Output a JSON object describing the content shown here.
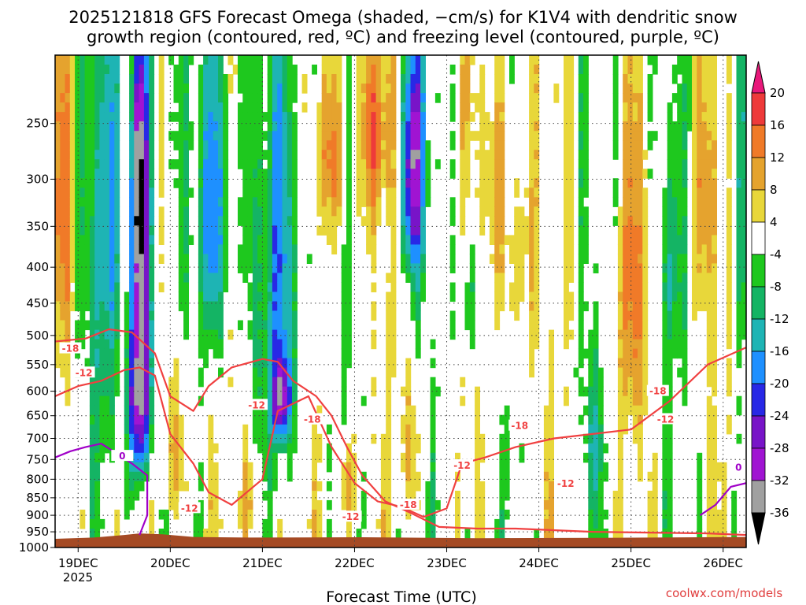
{
  "chart_data": {
    "type": "heatmap",
    "title_lines": [
      "2025121818 GFS Forecast Omega (shaded, −cm/s) for K1V4 with dendritic snow",
      "growth region (contoured, red, ºC) and freezing level (contoured, purple, ºC)"
    ],
    "xlabel": "Forecast Time (UTC)",
    "ylabel": "",
    "credit": "coolwx.com/models",
    "x_ticks": [
      "19DEC",
      "20DEC",
      "21DEC",
      "22DEC",
      "23DEC",
      "24DEC",
      "25DEC",
      "26DEC"
    ],
    "x_year": "2025",
    "x_range_hours": [
      0,
      180
    ],
    "y_ticks": [
      250,
      300,
      350,
      400,
      450,
      500,
      550,
      600,
      650,
      700,
      750,
      800,
      850,
      900,
      950,
      1000
    ],
    "y_range_hpa": [
      200,
      1000
    ],
    "colorbar": {
      "ticks": [
        20,
        16,
        12,
        8,
        4,
        -4,
        -8,
        -12,
        -16,
        -20,
        -24,
        -28,
        -32,
        -36
      ],
      "levels": [
        {
          "lo": 20,
          "hi": 24,
          "color": "#e8187a"
        },
        {
          "lo": 16,
          "hi": 20,
          "color": "#ee3a3a"
        },
        {
          "lo": 12,
          "hi": 16,
          "color": "#f07a28"
        },
        {
          "lo": 8,
          "hi": 12,
          "color": "#e5a32e"
        },
        {
          "lo": 4,
          "hi": 8,
          "color": "#e8d73a"
        },
        {
          "lo": -4,
          "hi": 4,
          "color": "#ffffff"
        },
        {
          "lo": -8,
          "hi": -4,
          "color": "#1ec81e"
        },
        {
          "lo": -12,
          "hi": -8,
          "color": "#14b464"
        },
        {
          "lo": -16,
          "hi": -12,
          "color": "#1eb4b4"
        },
        {
          "lo": -20,
          "hi": -16,
          "color": "#1e90ff"
        },
        {
          "lo": -24,
          "hi": -20,
          "color": "#2828e6"
        },
        {
          "lo": -28,
          "hi": -24,
          "color": "#7814c8"
        },
        {
          "lo": -32,
          "hi": -28,
          "color": "#a014d2"
        },
        {
          "lo": -36,
          "hi": -32,
          "color": "#a0a0a0"
        },
        {
          "lo": -40,
          "hi": -36,
          "color": "#000000"
        }
      ]
    },
    "omega_features": [
      {
        "t": 22,
        "p": 300,
        "sigma_t": 1.6,
        "sigma_p": 110,
        "value": -40
      },
      {
        "t": 22,
        "p": 600,
        "sigma_t": 2.0,
        "sigma_p": 140,
        "value": -40
      },
      {
        "t": 13,
        "p": 350,
        "sigma_t": 3.0,
        "sigma_p": 220,
        "value": -14
      },
      {
        "t": 41,
        "p": 330,
        "sigma_t": 3.0,
        "sigma_p": 140,
        "value": -20
      },
      {
        "t": 59,
        "p": 420,
        "sigma_t": 4.0,
        "sigma_p": 220,
        "value": -16
      },
      {
        "t": 59,
        "p": 620,
        "sigma_t": 1.5,
        "sigma_p": 60,
        "value": -26
      },
      {
        "t": 93,
        "p": 290,
        "sigma_t": 2.5,
        "sigma_p": 80,
        "value": -28
      },
      {
        "t": 84,
        "p": 260,
        "sigma_t": 3.0,
        "sigma_p": 60,
        "value": 14
      },
      {
        "t": 72,
        "p": 280,
        "sigma_t": 3.0,
        "sigma_p": 60,
        "value": 12
      },
      {
        "t": 31,
        "p": 720,
        "sigma_t": 3.0,
        "sigma_p": 140,
        "value": 10
      },
      {
        "t": 51,
        "p": 850,
        "sigma_t": 2.5,
        "sigma_p": 90,
        "value": 8
      },
      {
        "t": 76,
        "p": 820,
        "sigma_t": 2.0,
        "sigma_p": 90,
        "value": 9
      },
      {
        "t": 93,
        "p": 720,
        "sigma_t": 2.0,
        "sigma_p": 130,
        "value": 8
      },
      {
        "t": 112,
        "p": 300,
        "sigma_t": 3.0,
        "sigma_p": 80,
        "value": 8
      },
      {
        "t": 120,
        "p": 380,
        "sigma_t": 3.0,
        "sigma_p": 120,
        "value": 10
      },
      {
        "t": 150,
        "p": 450,
        "sigma_t": 3.0,
        "sigma_p": 140,
        "value": 10
      },
      {
        "t": 170,
        "p": 320,
        "sigma_t": 3.0,
        "sigma_p": 100,
        "value": 8
      },
      {
        "t": 2,
        "p": 330,
        "sigma_t": 2.0,
        "sigma_p": 140,
        "value": 10
      },
      {
        "t": 108,
        "p": 420,
        "sigma_t": 2.0,
        "sigma_p": 90,
        "value": -11
      },
      {
        "t": 140,
        "p": 700,
        "sigma_t": 2.0,
        "sigma_p": 120,
        "value": -9
      },
      {
        "t": 160,
        "p": 400,
        "sigma_t": 2.0,
        "sigma_p": 100,
        "value": -10
      },
      {
        "t": 178,
        "p": 300,
        "sigma_t": 1.5,
        "sigma_p": 150,
        "value": -12
      }
    ],
    "terrain_color": "#a54a24",
    "contours": [
      {
        "label": "-18",
        "color": "#f04040",
        "points": [
          [
            0,
            510
          ],
          [
            8,
            505
          ],
          [
            14,
            490
          ],
          [
            20,
            495
          ],
          [
            26,
            530
          ],
          [
            30,
            610
          ],
          [
            36,
            640
          ],
          [
            40,
            590
          ],
          [
            46,
            555
          ],
          [
            54,
            540
          ],
          [
            58,
            545
          ],
          [
            62,
            580
          ],
          [
            68,
            610
          ],
          [
            72,
            650
          ],
          [
            76,
            720
          ],
          [
            80,
            790
          ],
          [
            86,
            860
          ],
          [
            92,
            890
          ],
          [
            100,
            935
          ],
          [
            110,
            940
          ],
          [
            120,
            940
          ],
          [
            140,
            950
          ],
          [
            170,
            955
          ],
          [
            180,
            960
          ]
        ]
      },
      {
        "label": "-12",
        "color": "#f04040",
        "points": [
          [
            0,
            610
          ],
          [
            6,
            590
          ],
          [
            12,
            580
          ],
          [
            18,
            560
          ],
          [
            22,
            555
          ],
          [
            26,
            570
          ],
          [
            30,
            690
          ],
          [
            36,
            760
          ],
          [
            40,
            835
          ],
          [
            46,
            870
          ],
          [
            54,
            800
          ],
          [
            58,
            640
          ],
          [
            66,
            610
          ],
          [
            72,
            720
          ],
          [
            78,
            810
          ],
          [
            84,
            860
          ],
          [
            90,
            875
          ],
          [
            96,
            905
          ],
          [
            102,
            880
          ],
          [
            106,
            760
          ],
          [
            112,
            745
          ],
          [
            120,
            720
          ],
          [
            130,
            700
          ],
          [
            140,
            690
          ],
          [
            150,
            680
          ],
          [
            160,
            620
          ],
          [
            170,
            550
          ],
          [
            180,
            520
          ]
        ]
      },
      {
        "label": "0",
        "color": "#a000c8",
        "points": [
          [
            0,
            745
          ],
          [
            4,
            730
          ],
          [
            8,
            720
          ],
          [
            12,
            712
          ],
          [
            16,
            735
          ],
          [
            20,
            760
          ],
          [
            24,
            790
          ],
          [
            24,
            900
          ],
          [
            22,
            960
          ]
        ]
      },
      {
        "label": "0",
        "color": "#a000c8",
        "points": [
          [
            168,
            900
          ],
          [
            172,
            870
          ],
          [
            176,
            820
          ],
          [
            180,
            810
          ]
        ]
      }
    ],
    "contour_labels": [
      {
        "text": "-18",
        "t": 4,
        "p": 522,
        "color": "#f04040"
      },
      {
        "text": "-12",
        "t": 7.5,
        "p": 565,
        "color": "#f04040"
      },
      {
        "text": "-12",
        "t": 52.5,
        "p": 628,
        "color": "#f04040"
      },
      {
        "text": "-18",
        "t": 67,
        "p": 658,
        "color": "#f04040"
      },
      {
        "text": "-12",
        "t": 35,
        "p": 880,
        "color": "#f04040"
      },
      {
        "text": "-18",
        "t": 92,
        "p": 870,
        "color": "#f04040"
      },
      {
        "text": "-12",
        "t": 77,
        "p": 905,
        "color": "#f04040"
      },
      {
        "text": "-12",
        "t": 106,
        "p": 765,
        "color": "#f04040"
      },
      {
        "text": "-18",
        "t": 121,
        "p": 672,
        "color": "#f04040"
      },
      {
        "text": "-12",
        "t": 133,
        "p": 812,
        "color": "#f04040"
      },
      {
        "text": "-18",
        "t": 157,
        "p": 600,
        "color": "#f04040"
      },
      {
        "text": "-12",
        "t": 159,
        "p": 658,
        "color": "#f04040"
      },
      {
        "text": "0",
        "t": 17.5,
        "p": 742,
        "color": "#a000c8"
      },
      {
        "text": "0",
        "t": 178,
        "p": 770,
        "color": "#a000c8"
      }
    ]
  }
}
